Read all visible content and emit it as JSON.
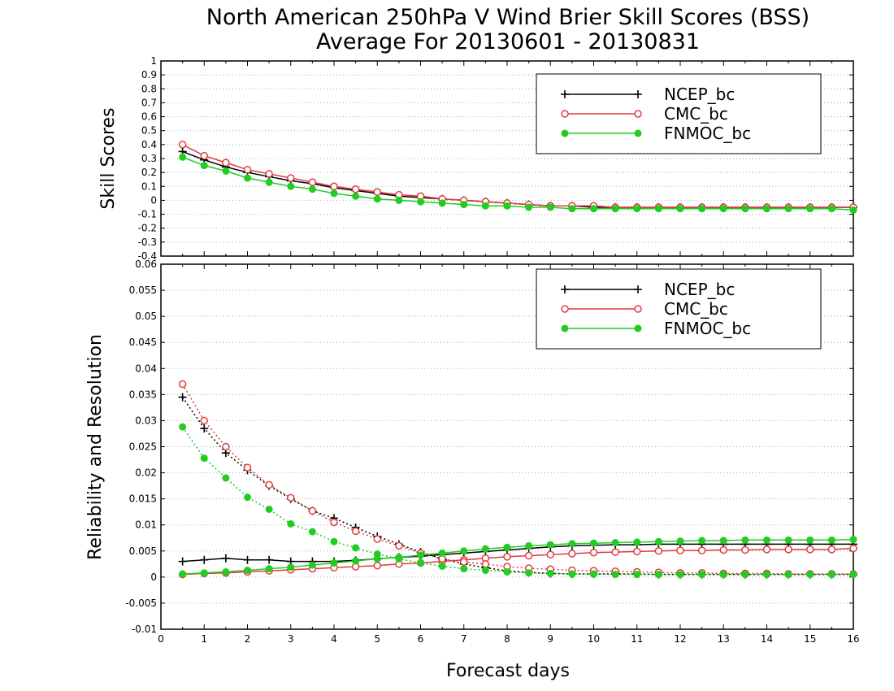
{
  "title_line1": "North American 250hPa V Wind Brier Skill Scores (BSS)",
  "title_line2": "Average For 20130601 - 20130831",
  "colors": {
    "NCEP_bc": "#000000",
    "CMC_bc": "#e03c3c",
    "FNMOC_bc": "#22cc22",
    "grid": "#aaaaaa"
  },
  "chart_data": [
    {
      "type": "line",
      "ylabel": "Skill Scores",
      "ylim": [
        -0.4,
        1
      ],
      "yticks": [
        "-0.4",
        "-0.3",
        "-0.2",
        "-0.1",
        "0",
        "0.1",
        "0.2",
        "0.3",
        "0.4",
        "0.5",
        "0.6",
        "0.7",
        "0.8",
        "0.9",
        "1"
      ],
      "xlim": [
        0,
        16
      ],
      "x": [
        0.5,
        1,
        1.5,
        2,
        2.5,
        3,
        3.5,
        4,
        4.5,
        5,
        5.5,
        6,
        6.5,
        7,
        7.5,
        8,
        8.5,
        9,
        9.5,
        10,
        10.5,
        11,
        11.5,
        12,
        12.5,
        13,
        13.5,
        14,
        14.5,
        15,
        15.5,
        16
      ],
      "legend": [
        "NCEP_bc",
        "CMC_bc",
        "FNMOC_bc"
      ],
      "legend_position": "top-right",
      "grid": true,
      "series": [
        {
          "name": "NCEP_bc",
          "marker": "plus",
          "style": "solid",
          "values": [
            0.35,
            0.29,
            0.24,
            0.2,
            0.17,
            0.14,
            0.12,
            0.09,
            0.07,
            0.05,
            0.03,
            0.02,
            0.01,
            0,
            -0.01,
            -0.02,
            -0.03,
            -0.04,
            -0.04,
            -0.05,
            -0.05,
            -0.05,
            -0.05,
            -0.05,
            -0.05,
            -0.05,
            -0.05,
            -0.05,
            -0.05,
            -0.05,
            -0.05,
            -0.05
          ]
        },
        {
          "name": "CMC_bc",
          "marker": "circle-open",
          "style": "solid",
          "values": [
            0.4,
            0.32,
            0.27,
            0.22,
            0.19,
            0.16,
            0.13,
            0.1,
            0.08,
            0.06,
            0.04,
            0.03,
            0.01,
            0,
            -0.01,
            -0.02,
            -0.03,
            -0.04,
            -0.04,
            -0.04,
            -0.05,
            -0.05,
            -0.05,
            -0.05,
            -0.05,
            -0.05,
            -0.05,
            -0.05,
            -0.05,
            -0.05,
            -0.05,
            -0.05
          ]
        },
        {
          "name": "FNMOC_bc",
          "marker": "circle-filled",
          "style": "solid",
          "values": [
            0.31,
            0.25,
            0.21,
            0.16,
            0.13,
            0.1,
            0.08,
            0.05,
            0.03,
            0.01,
            0,
            -0.01,
            -0.02,
            -0.03,
            -0.04,
            -0.04,
            -0.05,
            -0.05,
            -0.06,
            -0.06,
            -0.06,
            -0.06,
            -0.06,
            -0.06,
            -0.06,
            -0.06,
            -0.06,
            -0.06,
            -0.06,
            -0.06,
            -0.06,
            -0.07
          ]
        }
      ]
    },
    {
      "type": "line",
      "xlabel": "Forecast days",
      "ylabel": "Reliability and Resolution",
      "ylim": [
        -0.01,
        0.06
      ],
      "yticks": [
        "-0.01",
        "-0.005",
        "0",
        "0.005",
        "0.01",
        "0.015",
        "0.02",
        "0.025",
        "0.03",
        "0.035",
        "0.04",
        "0.045",
        "0.05",
        "0.055",
        "0.06"
      ],
      "xlim": [
        0,
        16
      ],
      "xticks": [
        "0",
        "1",
        "2",
        "3",
        "4",
        "5",
        "6",
        "7",
        "8",
        "9",
        "10",
        "11",
        "12",
        "13",
        "14",
        "15",
        "16"
      ],
      "x": [
        0.5,
        1,
        1.5,
        2,
        2.5,
        3,
        3.5,
        4,
        4.5,
        5,
        5.5,
        6,
        6.5,
        7,
        7.5,
        8,
        8.5,
        9,
        9.5,
        10,
        10.5,
        11,
        11.5,
        12,
        12.5,
        13,
        13.5,
        14,
        14.5,
        15,
        15.5,
        16
      ],
      "legend": [
        "NCEP_bc",
        "CMC_bc",
        "FNMOC_bc"
      ],
      "legend_position": "top-right",
      "grid": true,
      "series": [
        {
          "name": "NCEP_bc",
          "kind": "reliability",
          "marker": "plus",
          "style": "solid",
          "values": [
            0.003,
            0.0033,
            0.0036,
            0.0033,
            0.0033,
            0.003,
            0.003,
            0.003,
            0.0032,
            0.0035,
            0.0038,
            0.004,
            0.0043,
            0.0046,
            0.0049,
            0.0052,
            0.0055,
            0.0058,
            0.006,
            0.0061,
            0.0062,
            0.0062,
            0.0063,
            0.0063,
            0.0063,
            0.0063,
            0.0063,
            0.0063,
            0.0063,
            0.0063,
            0.0063,
            0.0063
          ]
        },
        {
          "name": "NCEP_bc",
          "kind": "resolution",
          "marker": "plus",
          "style": "dotted",
          "values": [
            0.0345,
            0.0285,
            0.0238,
            0.0205,
            0.0175,
            0.015,
            0.0127,
            0.0113,
            0.0095,
            0.0078,
            0.0063,
            0.0048,
            0.0035,
            0.0025,
            0.0018,
            0.0012,
            0.0009,
            0.0007,
            0.0006,
            0.0006,
            0.0006,
            0.0006,
            0.0005,
            0.0005,
            0.0005,
            0.0005,
            0.0005,
            0.0005,
            0.0005,
            0.0005,
            0.0005,
            0.0005
          ]
        },
        {
          "name": "CMC_bc",
          "kind": "reliability",
          "marker": "circle-open",
          "style": "solid",
          "values": [
            0.0005,
            0.0007,
            0.0008,
            0.001,
            0.0012,
            0.0014,
            0.0016,
            0.0018,
            0.002,
            0.0022,
            0.0025,
            0.0027,
            0.003,
            0.0033,
            0.0036,
            0.0039,
            0.0041,
            0.0043,
            0.0045,
            0.0047,
            0.0048,
            0.0049,
            0.005,
            0.0051,
            0.0051,
            0.0052,
            0.0052,
            0.0053,
            0.0053,
            0.0053,
            0.0053,
            0.0055
          ]
        },
        {
          "name": "CMC_bc",
          "kind": "resolution",
          "marker": "circle-open",
          "style": "dotted",
          "values": [
            0.037,
            0.03,
            0.025,
            0.021,
            0.0177,
            0.0152,
            0.0127,
            0.0105,
            0.0088,
            0.0073,
            0.006,
            0.0046,
            0.0035,
            0.0029,
            0.0025,
            0.002,
            0.0017,
            0.0015,
            0.0013,
            0.0012,
            0.0011,
            0.001,
            0.0009,
            0.0008,
            0.0008,
            0.0007,
            0.0007,
            0.0007,
            0.0006,
            0.0006,
            0.0006,
            0.0006
          ]
        },
        {
          "name": "FNMOC_bc",
          "kind": "reliability",
          "marker": "circle-filled",
          "style": "solid",
          "values": [
            0.0006,
            0.0008,
            0.001,
            0.0013,
            0.0016,
            0.0019,
            0.0023,
            0.0027,
            0.0031,
            0.0035,
            0.0038,
            0.0042,
            0.0046,
            0.005,
            0.0054,
            0.0057,
            0.006,
            0.0062,
            0.0064,
            0.0065,
            0.0066,
            0.0067,
            0.0068,
            0.0069,
            0.007,
            0.007,
            0.0071,
            0.0071,
            0.0071,
            0.0071,
            0.0071,
            0.0072
          ]
        },
        {
          "name": "FNMOC_bc",
          "kind": "resolution",
          "marker": "circle-filled",
          "style": "dotted",
          "values": [
            0.0288,
            0.0228,
            0.019,
            0.0153,
            0.013,
            0.0102,
            0.0087,
            0.0068,
            0.0056,
            0.0044,
            0.0035,
            0.0027,
            0.0021,
            0.0016,
            0.0013,
            0.001,
            0.0008,
            0.0007,
            0.0006,
            0.0006,
            0.0005,
            0.0005,
            0.0005,
            0.0005,
            0.0005,
            0.0005,
            0.0005,
            0.0005,
            0.0005,
            0.0005,
            0.0005,
            0.0005
          ]
        }
      ]
    }
  ]
}
